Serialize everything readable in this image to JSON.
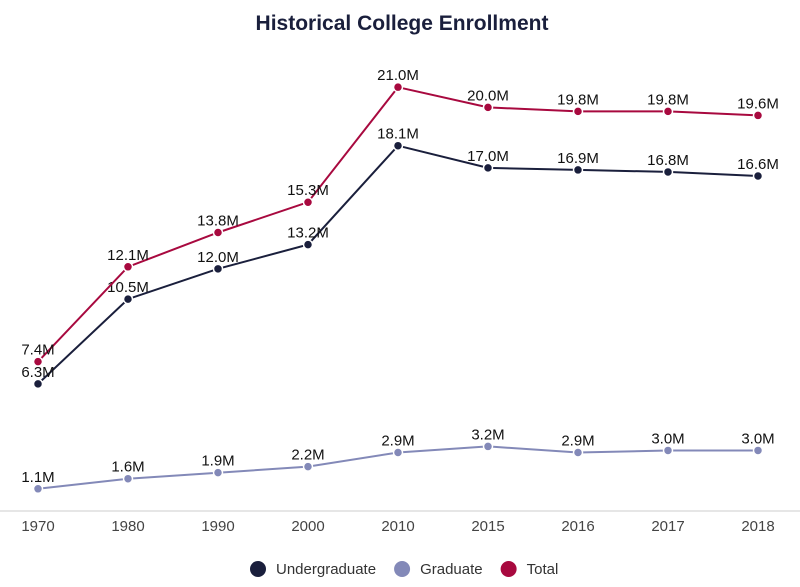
{
  "chart_data": {
    "type": "line",
    "title": "Historical College Enrollment",
    "xlabel": "",
    "ylabel": "",
    "categories": [
      "1970",
      "1980",
      "1990",
      "2000",
      "2010",
      "2015",
      "2016",
      "2017",
      "2018"
    ],
    "ylim": [
      0,
      22
    ],
    "grid": false,
    "legend_position": "bottom",
    "series": [
      {
        "name": "Undergraduate",
        "color": "#1a1f3c",
        "values": [
          6.3,
          10.5,
          12.0,
          13.2,
          18.1,
          17.0,
          16.9,
          16.8,
          16.6
        ],
        "labels": [
          "6.3M",
          "10.5M",
          "12.0M",
          "13.2M",
          "18.1M",
          "17.0M",
          "16.9M",
          "16.8M",
          "16.6M"
        ]
      },
      {
        "name": "Graduate",
        "color": "#8389b8",
        "values": [
          1.1,
          1.6,
          1.9,
          2.2,
          2.9,
          3.2,
          2.9,
          3.0,
          3.0
        ],
        "labels": [
          "1.1M",
          "1.6M",
          "1.9M",
          "2.2M",
          "2.9M",
          "3.2M",
          "2.9M",
          "3.0M",
          "3.0M"
        ]
      },
      {
        "name": "Total",
        "color": "#a8093f",
        "values": [
          7.4,
          12.1,
          13.8,
          15.3,
          21.0,
          20.0,
          19.8,
          19.8,
          19.6
        ],
        "labels": [
          "7.4M",
          "12.1M",
          "13.8M",
          "15.3M",
          "21.0M",
          "20.0M",
          "19.8M",
          "19.8M",
          "19.6M"
        ]
      }
    ]
  }
}
